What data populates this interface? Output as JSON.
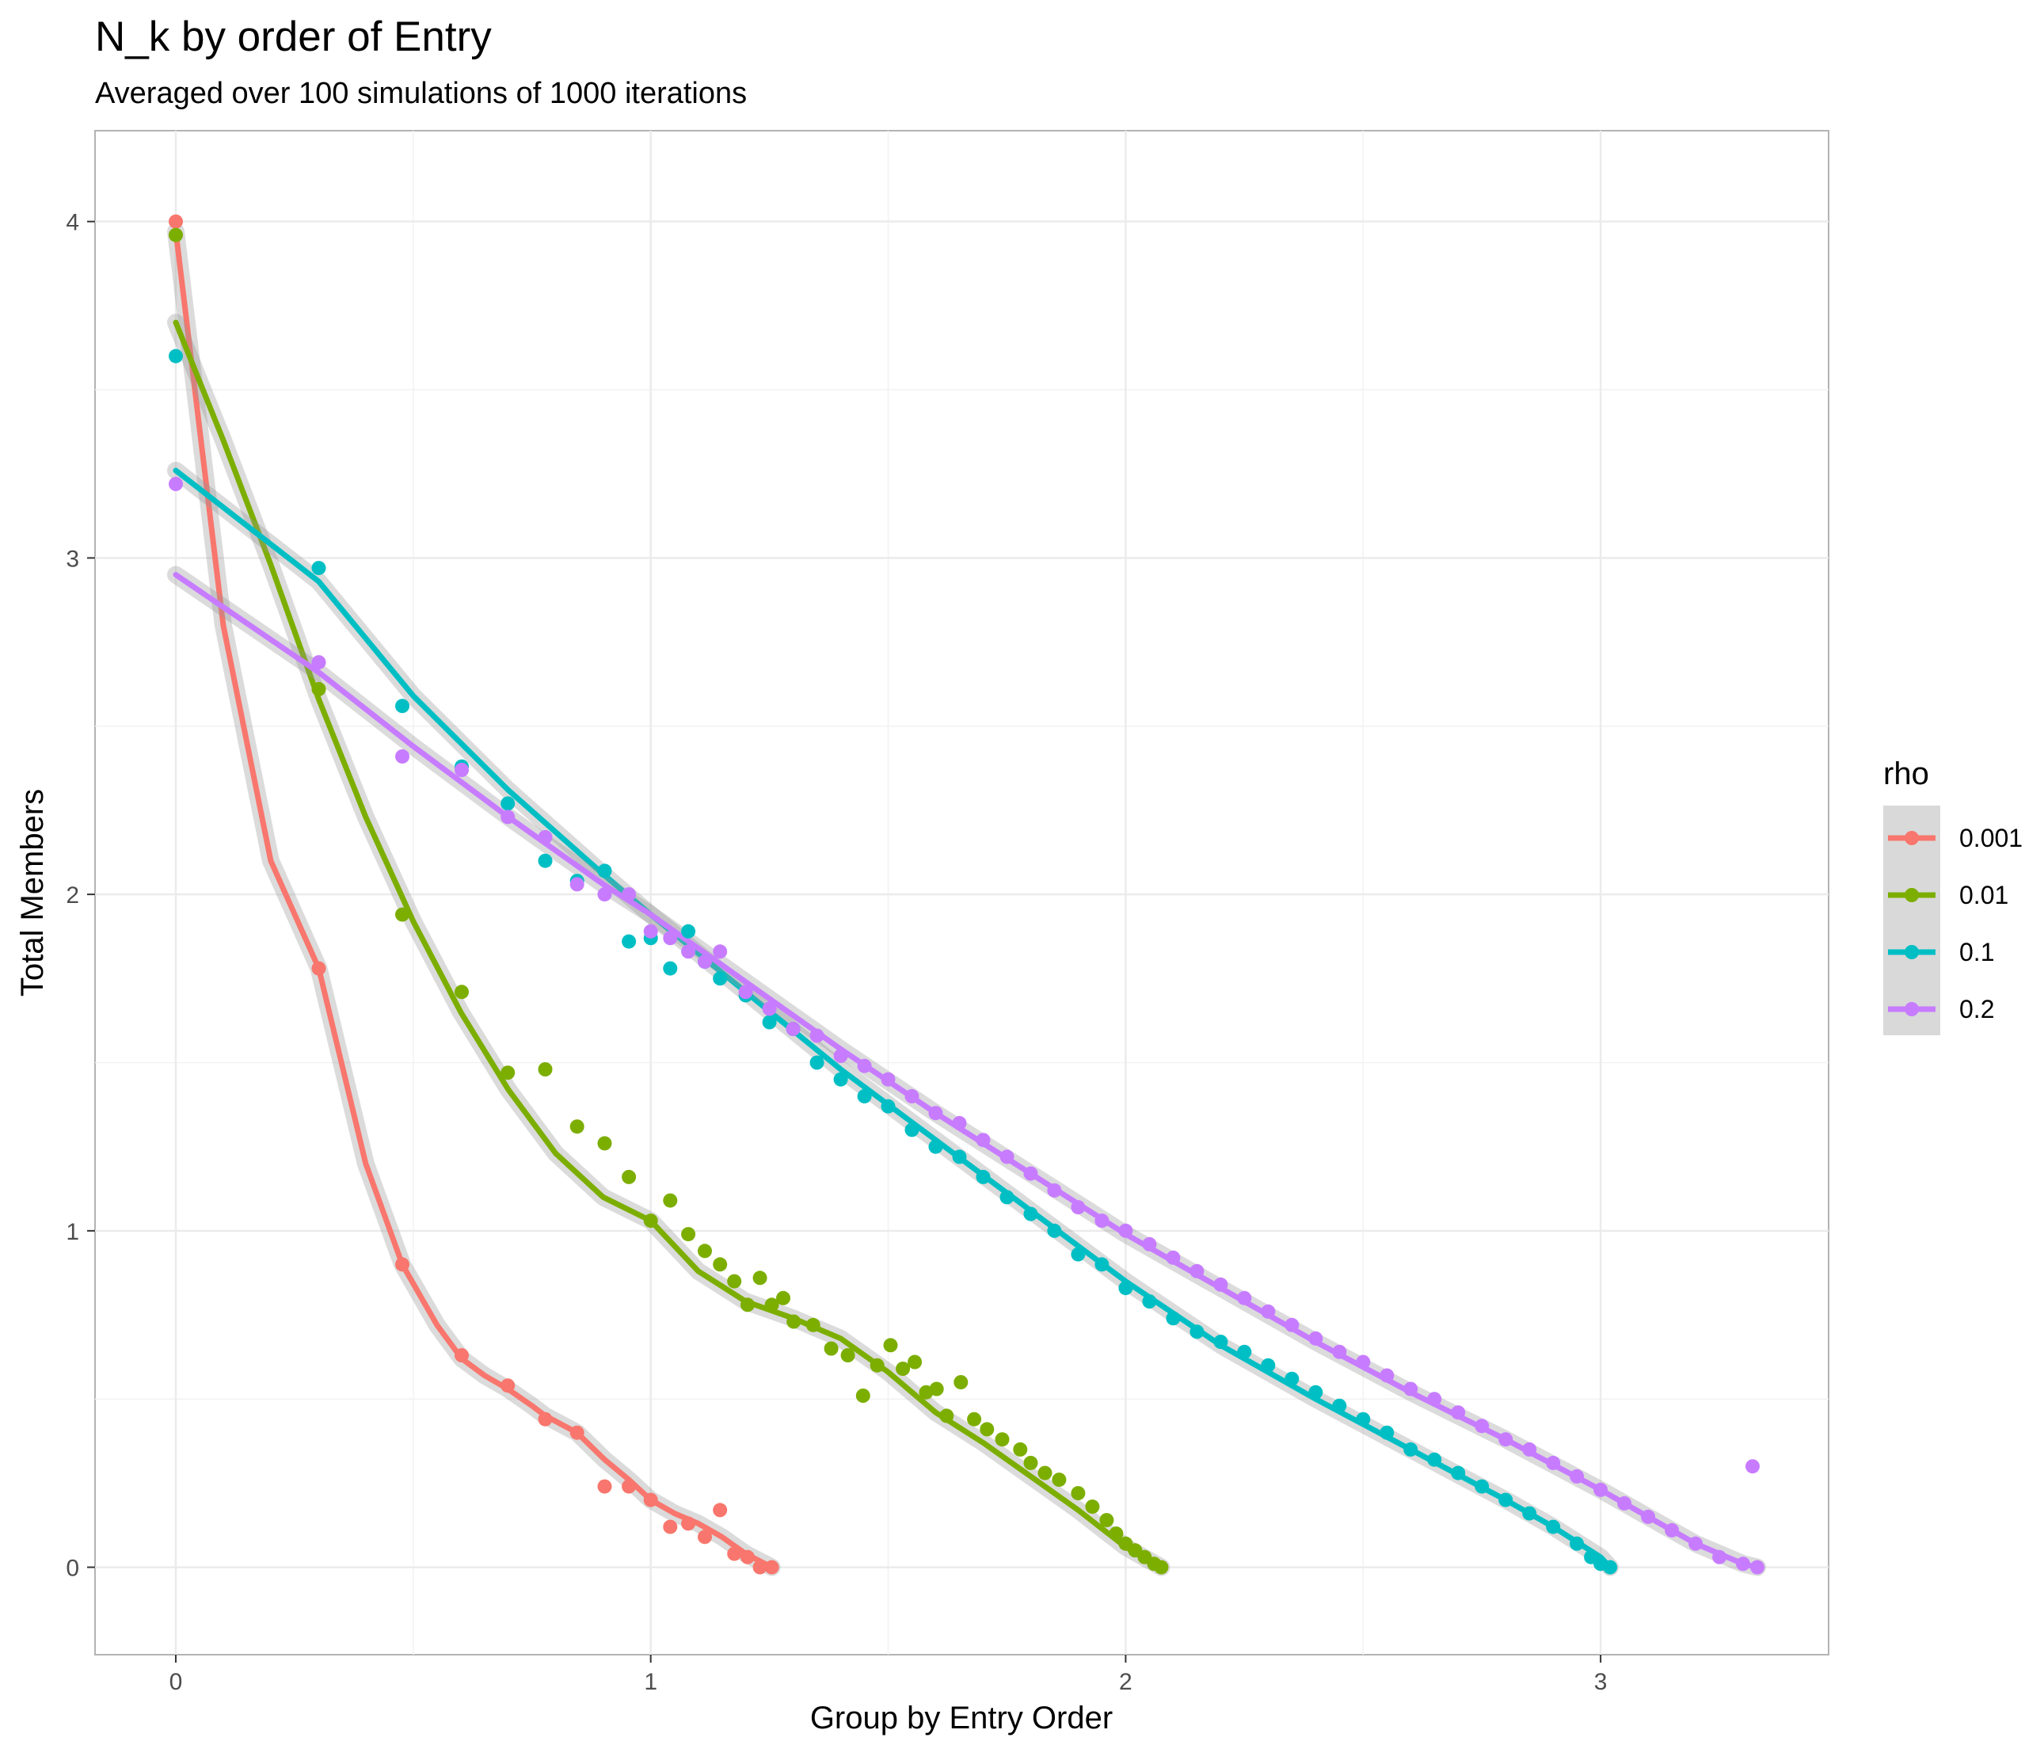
{
  "chart_data": {
    "type": "scatter",
    "title": "N_k by order of Entry",
    "subtitle": "Averaged over 100 simulations of 1000 iterations",
    "xlabel": "Group by Entry Order",
    "ylabel": "Total Members",
    "xlim": [
      -0.17,
      3.48
    ],
    "ylim": [
      -0.26,
      4.27
    ],
    "x_ticks": [
      0,
      1,
      2,
      3
    ],
    "y_ticks": [
      0,
      1,
      2,
      3,
      4
    ],
    "x_tick_labels": [
      "0",
      "1",
      "2",
      "3"
    ],
    "y_tick_labels": [
      "0",
      "1",
      "2",
      "3",
      "4"
    ],
    "grid": true,
    "legend": {
      "title": "rho",
      "position": "right"
    },
    "series": [
      {
        "name": "0.001",
        "color": "#F8766D",
        "points": [
          [
            0,
            4.0
          ],
          [
            0.301,
            1.78
          ],
          [
            0.477,
            0.9
          ],
          [
            0.602,
            0.63
          ],
          [
            0.699,
            0.54
          ],
          [
            0.778,
            0.44
          ],
          [
            0.845,
            0.4
          ],
          [
            0.903,
            0.24
          ],
          [
            0.954,
            0.24
          ],
          [
            1.0,
            0.2
          ],
          [
            1.041,
            0.12
          ],
          [
            1.079,
            0.13
          ],
          [
            1.114,
            0.09
          ],
          [
            1.146,
            0.17
          ],
          [
            1.176,
            0.04
          ],
          [
            1.204,
            0.03
          ],
          [
            1.23,
            0.0
          ],
          [
            1.255,
            0.0
          ]
        ],
        "smooth": [
          [
            0,
            3.97
          ],
          [
            0.1,
            2.8
          ],
          [
            0.2,
            2.1
          ],
          [
            0.301,
            1.78
          ],
          [
            0.4,
            1.2
          ],
          [
            0.477,
            0.9
          ],
          [
            0.55,
            0.72
          ],
          [
            0.602,
            0.62
          ],
          [
            0.65,
            0.57
          ],
          [
            0.699,
            0.53
          ],
          [
            0.75,
            0.48
          ],
          [
            0.778,
            0.45
          ],
          [
            0.845,
            0.4
          ],
          [
            0.903,
            0.32
          ],
          [
            0.954,
            0.26
          ],
          [
            1.0,
            0.2
          ],
          [
            1.05,
            0.16
          ],
          [
            1.1,
            0.13
          ],
          [
            1.15,
            0.09
          ],
          [
            1.2,
            0.04
          ],
          [
            1.255,
            0.0
          ]
        ]
      },
      {
        "name": "0.01",
        "color": "#7CAE00",
        "points": [
          [
            0,
            3.96
          ],
          [
            0.301,
            2.61
          ],
          [
            0.477,
            1.94
          ],
          [
            0.602,
            1.71
          ],
          [
            0.699,
            1.47
          ],
          [
            0.778,
            1.48
          ],
          [
            0.845,
            1.31
          ],
          [
            0.903,
            1.26
          ],
          [
            0.954,
            1.16
          ],
          [
            1.0,
            1.03
          ],
          [
            1.041,
            1.09
          ],
          [
            1.079,
            0.99
          ],
          [
            1.114,
            0.94
          ],
          [
            1.146,
            0.9
          ],
          [
            1.176,
            0.85
          ],
          [
            1.204,
            0.78
          ],
          [
            1.23,
            0.86
          ],
          [
            1.255,
            0.78
          ],
          [
            1.279,
            0.8
          ],
          [
            1.301,
            0.73
          ],
          [
            1.342,
            0.72
          ],
          [
            1.38,
            0.65
          ],
          [
            1.415,
            0.63
          ],
          [
            1.447,
            0.51
          ],
          [
            1.477,
            0.6
          ],
          [
            1.505,
            0.66
          ],
          [
            1.531,
            0.59
          ],
          [
            1.556,
            0.61
          ],
          [
            1.58,
            0.52
          ],
          [
            1.602,
            0.53
          ],
          [
            1.623,
            0.45
          ],
          [
            1.653,
            0.55
          ],
          [
            1.681,
            0.44
          ],
          [
            1.708,
            0.41
          ],
          [
            1.74,
            0.38
          ],
          [
            1.778,
            0.35
          ],
          [
            1.8,
            0.31
          ],
          [
            1.83,
            0.28
          ],
          [
            1.86,
            0.26
          ],
          [
            1.9,
            0.22
          ],
          [
            1.93,
            0.18
          ],
          [
            1.96,
            0.14
          ],
          [
            1.98,
            0.1
          ],
          [
            2.0,
            0.07
          ],
          [
            2.02,
            0.05
          ],
          [
            2.04,
            0.03
          ],
          [
            2.06,
            0.01
          ],
          [
            2.075,
            0.0
          ]
        ],
        "smooth": [
          [
            0,
            3.7
          ],
          [
            0.1,
            3.35
          ],
          [
            0.2,
            2.98
          ],
          [
            0.301,
            2.58
          ],
          [
            0.4,
            2.23
          ],
          [
            0.5,
            1.92
          ],
          [
            0.6,
            1.65
          ],
          [
            0.7,
            1.42
          ],
          [
            0.8,
            1.23
          ],
          [
            0.9,
            1.1
          ],
          [
            1.0,
            1.03
          ],
          [
            1.1,
            0.88
          ],
          [
            1.2,
            0.79
          ],
          [
            1.3,
            0.74
          ],
          [
            1.4,
            0.68
          ],
          [
            1.5,
            0.58
          ],
          [
            1.6,
            0.46
          ],
          [
            1.7,
            0.37
          ],
          [
            1.8,
            0.27
          ],
          [
            1.9,
            0.17
          ],
          [
            2.0,
            0.06
          ],
          [
            2.075,
            0.0
          ]
        ]
      },
      {
        "name": "0.1",
        "color": "#00BFC4",
        "points": [
          [
            0,
            3.6
          ],
          [
            0.301,
            2.97
          ],
          [
            0.477,
            2.56
          ],
          [
            0.602,
            2.38
          ],
          [
            0.699,
            2.27
          ],
          [
            0.778,
            2.1
          ],
          [
            0.845,
            2.04
          ],
          [
            0.903,
            2.07
          ],
          [
            0.954,
            1.86
          ],
          [
            1.0,
            1.87
          ],
          [
            1.041,
            1.78
          ],
          [
            1.079,
            1.89
          ],
          [
            1.114,
            1.8
          ],
          [
            1.146,
            1.75
          ],
          [
            1.2,
            1.7
          ],
          [
            1.25,
            1.62
          ],
          [
            1.3,
            1.6
          ],
          [
            1.35,
            1.5
          ],
          [
            1.4,
            1.45
          ],
          [
            1.45,
            1.4
          ],
          [
            1.5,
            1.37
          ],
          [
            1.55,
            1.3
          ],
          [
            1.6,
            1.25
          ],
          [
            1.65,
            1.22
          ],
          [
            1.7,
            1.16
          ],
          [
            1.75,
            1.1
          ],
          [
            1.8,
            1.05
          ],
          [
            1.85,
            1.0
          ],
          [
            1.9,
            0.93
          ],
          [
            1.95,
            0.9
          ],
          [
            2.0,
            0.83
          ],
          [
            2.05,
            0.79
          ],
          [
            2.1,
            0.74
          ],
          [
            2.15,
            0.7
          ],
          [
            2.2,
            0.67
          ],
          [
            2.25,
            0.64
          ],
          [
            2.3,
            0.6
          ],
          [
            2.35,
            0.56
          ],
          [
            2.4,
            0.52
          ],
          [
            2.45,
            0.48
          ],
          [
            2.5,
            0.44
          ],
          [
            2.55,
            0.4
          ],
          [
            2.6,
            0.35
          ],
          [
            2.65,
            0.32
          ],
          [
            2.7,
            0.28
          ],
          [
            2.75,
            0.24
          ],
          [
            2.8,
            0.2
          ],
          [
            2.85,
            0.16
          ],
          [
            2.9,
            0.12
          ],
          [
            2.95,
            0.07
          ],
          [
            2.98,
            0.03
          ],
          [
            3.0,
            0.01
          ],
          [
            3.02,
            0.0
          ]
        ],
        "smooth": [
          [
            0,
            3.26
          ],
          [
            0.301,
            2.93
          ],
          [
            0.5,
            2.59
          ],
          [
            0.7,
            2.31
          ],
          [
            0.9,
            2.06
          ],
          [
            1.0,
            1.94
          ],
          [
            1.2,
            1.71
          ],
          [
            1.4,
            1.48
          ],
          [
            1.6,
            1.27
          ],
          [
            1.8,
            1.06
          ],
          [
            2.0,
            0.85
          ],
          [
            2.2,
            0.66
          ],
          [
            2.4,
            0.5
          ],
          [
            2.6,
            0.35
          ],
          [
            2.8,
            0.2
          ],
          [
            2.9,
            0.12
          ],
          [
            3.0,
            0.03
          ],
          [
            3.02,
            0.0
          ]
        ]
      },
      {
        "name": "0.2",
        "color": "#C77CFF",
        "points": [
          [
            0,
            3.22
          ],
          [
            0.301,
            2.69
          ],
          [
            0.477,
            2.41
          ],
          [
            0.602,
            2.37
          ],
          [
            0.699,
            2.23
          ],
          [
            0.778,
            2.17
          ],
          [
            0.845,
            2.03
          ],
          [
            0.903,
            2.0
          ],
          [
            0.954,
            2.0
          ],
          [
            1.0,
            1.89
          ],
          [
            1.041,
            1.87
          ],
          [
            1.079,
            1.83
          ],
          [
            1.114,
            1.8
          ],
          [
            1.146,
            1.83
          ],
          [
            1.2,
            1.71
          ],
          [
            1.25,
            1.66
          ],
          [
            1.3,
            1.6
          ],
          [
            1.35,
            1.58
          ],
          [
            1.4,
            1.52
          ],
          [
            1.45,
            1.49
          ],
          [
            1.5,
            1.45
          ],
          [
            1.55,
            1.4
          ],
          [
            1.6,
            1.35
          ],
          [
            1.65,
            1.32
          ],
          [
            1.7,
            1.27
          ],
          [
            1.75,
            1.22
          ],
          [
            1.8,
            1.17
          ],
          [
            1.85,
            1.12
          ],
          [
            1.9,
            1.07
          ],
          [
            1.95,
            1.03
          ],
          [
            2.0,
            1.0
          ],
          [
            2.05,
            0.96
          ],
          [
            2.1,
            0.92
          ],
          [
            2.15,
            0.88
          ],
          [
            2.2,
            0.84
          ],
          [
            2.25,
            0.8
          ],
          [
            2.3,
            0.76
          ],
          [
            2.35,
            0.72
          ],
          [
            2.4,
            0.68
          ],
          [
            2.45,
            0.64
          ],
          [
            2.5,
            0.61
          ],
          [
            2.55,
            0.57
          ],
          [
            2.6,
            0.53
          ],
          [
            2.65,
            0.5
          ],
          [
            2.7,
            0.46
          ],
          [
            2.75,
            0.42
          ],
          [
            2.8,
            0.38
          ],
          [
            2.85,
            0.35
          ],
          [
            2.9,
            0.31
          ],
          [
            2.95,
            0.27
          ],
          [
            3.0,
            0.23
          ],
          [
            3.05,
            0.19
          ],
          [
            3.1,
            0.15
          ],
          [
            3.15,
            0.11
          ],
          [
            3.2,
            0.07
          ],
          [
            3.25,
            0.03
          ],
          [
            3.3,
            0.01
          ],
          [
            3.32,
            0.3
          ],
          [
            3.33,
            0.0
          ]
        ],
        "smooth": [
          [
            0,
            2.95
          ],
          [
            0.301,
            2.66
          ],
          [
            0.5,
            2.44
          ],
          [
            0.7,
            2.23
          ],
          [
            0.9,
            2.03
          ],
          [
            1.0,
            1.94
          ],
          [
            1.2,
            1.74
          ],
          [
            1.4,
            1.54
          ],
          [
            1.6,
            1.35
          ],
          [
            1.8,
            1.17
          ],
          [
            2.0,
            0.99
          ],
          [
            2.2,
            0.83
          ],
          [
            2.4,
            0.67
          ],
          [
            2.6,
            0.52
          ],
          [
            2.8,
            0.38
          ],
          [
            3.0,
            0.23
          ],
          [
            3.1,
            0.15
          ],
          [
            3.2,
            0.07
          ],
          [
            3.3,
            0.01
          ],
          [
            3.33,
            0.0
          ]
        ]
      }
    ]
  }
}
